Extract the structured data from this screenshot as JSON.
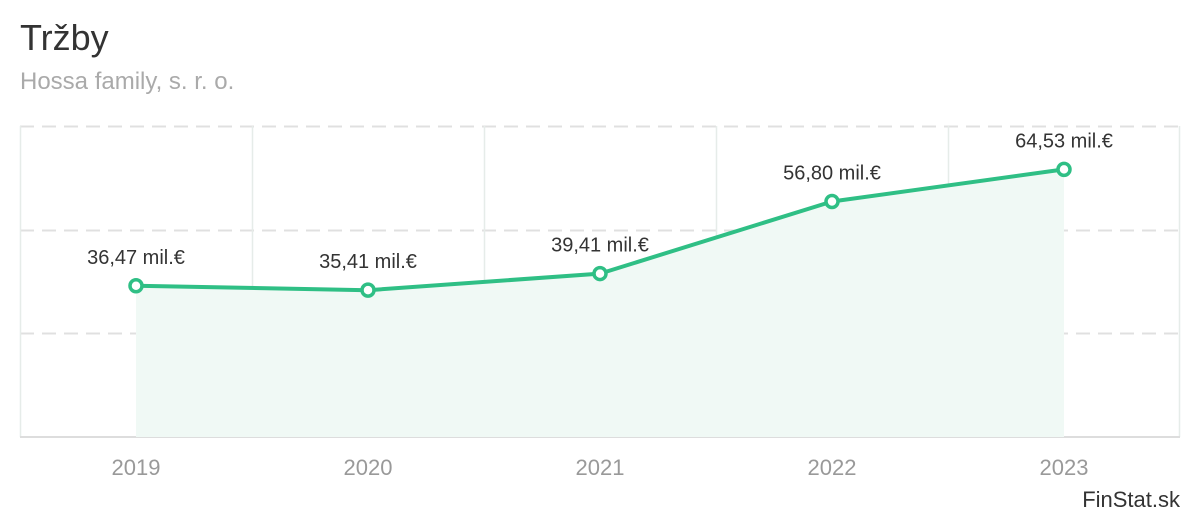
{
  "header": {
    "title": "Tržby",
    "subtitle": "Hossa family, s. r. o."
  },
  "credit": "FinStat.sk",
  "colors": {
    "line": "#2fbf85",
    "area": "#f0f9f5",
    "grid_dashed": "#e0e0e0",
    "grid_vertical": "#e6ece9",
    "axis": "#dddddd"
  },
  "chart_data": {
    "type": "area",
    "title": "Tržby",
    "subtitle": "Hossa family, s. r. o.",
    "categories": [
      "2019",
      "2020",
      "2021",
      "2022",
      "2023"
    ],
    "series": [
      {
        "name": "Tržby",
        "values": [
          36.47,
          35.41,
          39.41,
          56.8,
          64.53
        ],
        "labels": [
          "36,47 mil.€",
          "35,41 mil.€",
          "39,41 mil.€",
          "56,80 mil.€",
          "64,53 mil.€"
        ]
      }
    ],
    "unit": "mil.€",
    "ylim": [
      0,
      75
    ],
    "y_grid": [
      0,
      25,
      50,
      75
    ],
    "grid": true,
    "legend": "none"
  }
}
